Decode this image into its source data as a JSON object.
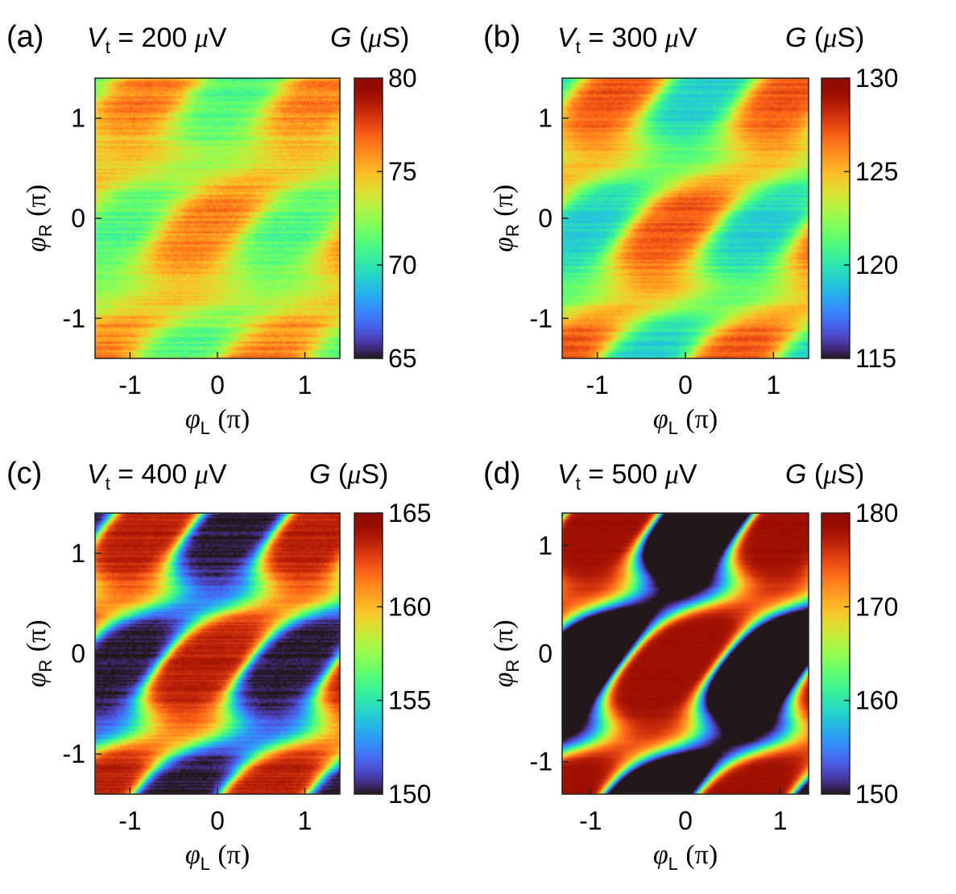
{
  "chart_data": [
    {
      "type": "heatmap",
      "panel": "(a)",
      "title_var": "V",
      "title_sub": "t",
      "title_value": "= 200",
      "title_unit_mu": "μ",
      "title_unit_rest": "V",
      "colorbar_label": {
        "var": "G",
        "open": " (",
        "mu": "μ",
        "rest": "S)"
      },
      "colorbar_range": [
        65,
        80
      ],
      "colorbar_ticks": [
        "80",
        "75",
        "70",
        "65"
      ],
      "colorbar_tick_values": [
        80,
        75,
        70,
        65
      ],
      "xlabel": {
        "var": "φ",
        "sub": "L",
        "unit": "(π)"
      },
      "ylabel": {
        "var": "φ",
        "sub": "R",
        "unit": "(π)"
      },
      "xlim": [
        -1.4,
        1.4
      ],
      "ylim": [
        -1.4,
        1.4
      ],
      "xticks": [
        "-1",
        "0",
        "1"
      ],
      "xtick_values": [
        -1,
        0,
        1
      ],
      "yticks": [
        "1",
        "0",
        "-1"
      ],
      "ytick_values": [
        1,
        0,
        -1
      ],
      "colormap": "turbo",
      "pattern": {
        "amplitude": 0.34,
        "offset": 0.58,
        "sharpness": 1.0,
        "noise": 0.1
      }
    },
    {
      "type": "heatmap",
      "panel": "(b)",
      "title_var": "V",
      "title_sub": "t",
      "title_value": "= 300",
      "title_unit_mu": "μ",
      "title_unit_rest": "V",
      "colorbar_label": {
        "var": "G",
        "open": " (",
        "mu": "μ",
        "rest": "S)"
      },
      "colorbar_range": [
        115,
        130
      ],
      "colorbar_ticks": [
        "130",
        "125",
        "120",
        "115"
      ],
      "colorbar_tick_values": [
        130,
        125,
        120,
        115
      ],
      "xlabel": {
        "var": "φ",
        "sub": "L",
        "unit": "(π)"
      },
      "ylabel": {
        "var": "φ",
        "sub": "R",
        "unit": "(π)"
      },
      "xlim": [
        -1.4,
        1.4
      ],
      "ylim": [
        -1.4,
        1.4
      ],
      "xticks": [
        "-1",
        "0",
        "1"
      ],
      "xtick_values": [
        -1,
        0,
        1
      ],
      "yticks": [
        "1",
        "0",
        "-1"
      ],
      "ytick_values": [
        1,
        0,
        -1
      ],
      "colormap": "turbo",
      "pattern": {
        "amplitude": 0.52,
        "offset": 0.55,
        "sharpness": 1.2,
        "noise": 0.07
      }
    },
    {
      "type": "heatmap",
      "panel": "(c)",
      "title_var": "V",
      "title_sub": "t",
      "title_value": "= 400",
      "title_unit_mu": "μ",
      "title_unit_rest": "V",
      "colorbar_label": {
        "var": "G",
        "open": " (",
        "mu": "μ",
        "rest": "S)"
      },
      "colorbar_range": [
        150,
        165
      ],
      "colorbar_ticks": [
        "165",
        "160",
        "155",
        "150"
      ],
      "colorbar_tick_values": [
        165,
        160,
        155,
        150
      ],
      "xlabel": {
        "var": "φ",
        "sub": "L",
        "unit": "(π)"
      },
      "ylabel": {
        "var": "φ",
        "sub": "R",
        "unit": "(π)"
      },
      "xlim": [
        -1.4,
        1.4
      ],
      "ylim": [
        -1.4,
        1.4
      ],
      "xticks": [
        "-1",
        "0",
        "1"
      ],
      "xtick_values": [
        -1,
        0,
        1
      ],
      "yticks": [
        "1",
        "0",
        "-1"
      ],
      "ytick_values": [
        1,
        0,
        -1
      ],
      "colormap": "turbo",
      "pattern": {
        "amplitude": 0.9,
        "offset": 0.45,
        "sharpness": 2.2,
        "noise": 0.06
      }
    },
    {
      "type": "heatmap",
      "panel": "(d)",
      "title_var": "V",
      "title_sub": "t",
      "title_value": "= 500",
      "title_unit_mu": "μ",
      "title_unit_rest": "V",
      "colorbar_label": {
        "var": "G",
        "open": " (",
        "mu": "μ",
        "rest": "S)"
      },
      "colorbar_range": [
        150,
        180
      ],
      "colorbar_ticks": [
        "180",
        "170",
        "160",
        "150"
      ],
      "colorbar_tick_values": [
        180,
        170,
        160,
        150
      ],
      "xlabel": {
        "var": "φ",
        "sub": "L",
        "unit": "(π)"
      },
      "ylabel": {
        "var": "φ",
        "sub": "R",
        "unit": "(π)"
      },
      "xlim": [
        -1.3,
        1.3
      ],
      "ylim": [
        -1.3,
        1.3
      ],
      "xticks": [
        "-1",
        "0",
        "1"
      ],
      "xtick_values": [
        -1,
        0,
        1
      ],
      "yticks": [
        "1",
        "0",
        "-1"
      ],
      "ytick_values": [
        1,
        0,
        -1
      ],
      "colormap": "turbo",
      "pattern": {
        "amplitude": 1.1,
        "offset": 0.4,
        "sharpness": 3.0,
        "noise": 0.02
      }
    }
  ]
}
